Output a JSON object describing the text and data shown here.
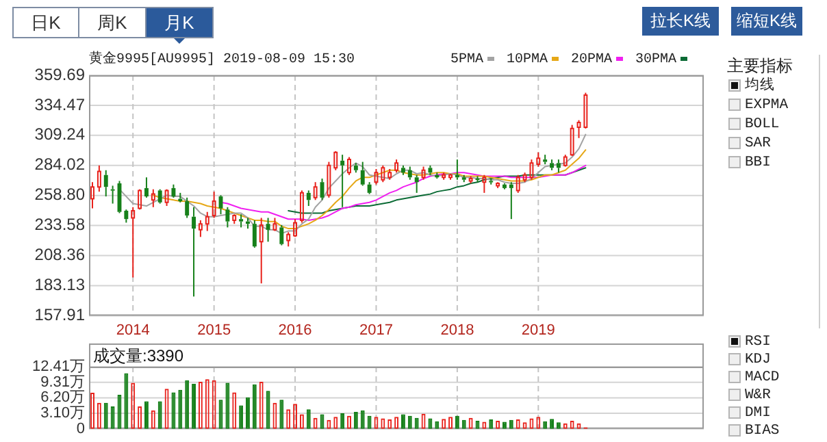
{
  "chart_data": [
    {
      "type": "candlestick",
      "title": "黄金9995[AU9995] 2019-08-09 15:30",
      "x": [
        "2013-07",
        "2013-08",
        "2013-09",
        "2013-10",
        "2013-11",
        "2013-12",
        "2014-01",
        "2014-02",
        "2014-03",
        "2014-04",
        "2014-05",
        "2014-06",
        "2014-07",
        "2014-08",
        "2014-09",
        "2014-10",
        "2014-11",
        "2014-12",
        "2015-01",
        "2015-02",
        "2015-03",
        "2015-04",
        "2015-05",
        "2015-06",
        "2015-07",
        "2015-08",
        "2015-09",
        "2015-10",
        "2015-11",
        "2015-12",
        "2016-01",
        "2016-02",
        "2016-03",
        "2016-04",
        "2016-05",
        "2016-06",
        "2016-07",
        "2016-08",
        "2016-09",
        "2016-10",
        "2016-11",
        "2016-12",
        "2017-01",
        "2017-02",
        "2017-03",
        "2017-04",
        "2017-05",
        "2017-06",
        "2017-07",
        "2017-08",
        "2017-09",
        "2017-10",
        "2017-11",
        "2017-12",
        "2018-01",
        "2018-02",
        "2018-03",
        "2018-04",
        "2018-05",
        "2018-06",
        "2018-07",
        "2018-08",
        "2018-09",
        "2018-10",
        "2018-11",
        "2018-12",
        "2019-01",
        "2019-02",
        "2019-03",
        "2019-04",
        "2019-05",
        "2019-06",
        "2019-07",
        "2019-08"
      ],
      "ohlc": [
        [
          256,
          270,
          248,
          266
        ],
        [
          266,
          284,
          262,
          279
        ],
        [
          276,
          280,
          258,
          266
        ],
        [
          264,
          267,
          252,
          263
        ],
        [
          269,
          271,
          244,
          245
        ],
        [
          246,
          247,
          236,
          239
        ],
        [
          240,
          249,
          190,
          246
        ],
        [
          248,
          264,
          247,
          263
        ],
        [
          265,
          274,
          257,
          258
        ],
        [
          255,
          264,
          249,
          260
        ],
        [
          263,
          264,
          252,
          253
        ],
        [
          253,
          264,
          250,
          263
        ],
        [
          265,
          268,
          257,
          258
        ],
        [
          256,
          261,
          253,
          254
        ],
        [
          254,
          257,
          240,
          242
        ],
        [
          241,
          249,
          174,
          231
        ],
        [
          230,
          238,
          224,
          235
        ],
        [
          235,
          245,
          229,
          241
        ],
        [
          242,
          262,
          240,
          254
        ],
        [
          258,
          259,
          243,
          248
        ],
        [
          247,
          249,
          232,
          237
        ],
        [
          238,
          243,
          235,
          242
        ],
        [
          239,
          243,
          232,
          237
        ],
        [
          237,
          240,
          231,
          235
        ],
        [
          235,
          238,
          215,
          216
        ],
        [
          220,
          240,
          185,
          234
        ],
        [
          235,
          240,
          220,
          230
        ],
        [
          230,
          240,
          229,
          235
        ],
        [
          232,
          234,
          217,
          218
        ],
        [
          221,
          228,
          216,
          226
        ],
        [
          225,
          239,
          224,
          236
        ],
        [
          238,
          263,
          236,
          261
        ],
        [
          261,
          263,
          250,
          255
        ],
        [
          257,
          270,
          255,
          266
        ],
        [
          270,
          273,
          255,
          257
        ],
        [
          259,
          287,
          257,
          284
        ],
        [
          282,
          296,
          280,
          295
        ],
        [
          288,
          293,
          249,
          284
        ],
        [
          278,
          291,
          276,
          289
        ],
        [
          284,
          286,
          278,
          280
        ],
        [
          280,
          287,
          267,
          268
        ],
        [
          268,
          270,
          260,
          261
        ],
        [
          270,
          281,
          268,
          278
        ],
        [
          272,
          284,
          270,
          282
        ],
        [
          274,
          281,
          272,
          278
        ],
        [
          280,
          289,
          278,
          286
        ],
        [
          282,
          284,
          276,
          278
        ],
        [
          280,
          283,
          272,
          274
        ],
        [
          274,
          276,
          261,
          270
        ],
        [
          274,
          283,
          272,
          280
        ],
        [
          282,
          284,
          276,
          278
        ],
        [
          276,
          278,
          273,
          274
        ],
        [
          274,
          278,
          272,
          276
        ],
        [
          274,
          277,
          272,
          276
        ],
        [
          276,
          289,
          272,
          274
        ],
        [
          274,
          276,
          270,
          272
        ],
        [
          271,
          275,
          269,
          273
        ],
        [
          273,
          275,
          270,
          272
        ],
        [
          270,
          276,
          261,
          274
        ],
        [
          271,
          273,
          268,
          270
        ],
        [
          267,
          270,
          265,
          269
        ],
        [
          268,
          269,
          264,
          265
        ],
        [
          268,
          270,
          239,
          265
        ],
        [
          263,
          276,
          261,
          274
        ],
        [
          272,
          278,
          270,
          276
        ],
        [
          274,
          289,
          272,
          286
        ],
        [
          285,
          295,
          283,
          290
        ],
        [
          289,
          293,
          285,
          287
        ],
        [
          286,
          289,
          280,
          282
        ],
        [
          286,
          289,
          278,
          282
        ],
        [
          284,
          293,
          283,
          291
        ],
        [
          293,
          318,
          292,
          315
        ],
        [
          316,
          322,
          307,
          320
        ],
        [
          316,
          345,
          315,
          343
        ]
      ],
      "colors": [
        "#e8221c",
        "#e8221c",
        "#16801a",
        "#16801a",
        "#16801a",
        "#16801a",
        "#e8221c",
        "#e8221c",
        "#16801a",
        "#e8221c",
        "#16801a",
        "#e8221c",
        "#16801a",
        "#16801a",
        "#16801a",
        "#16801a",
        "#e8221c",
        "#e8221c",
        "#e8221c",
        "#16801a",
        "#16801a",
        "#e8221c",
        "#16801a",
        "#16801a",
        "#16801a",
        "#e8221c",
        "#16801a",
        "#e8221c",
        "#16801a",
        "#e8221c",
        "#e8221c",
        "#e8221c",
        "#16801a",
        "#e8221c",
        "#16801a",
        "#e8221c",
        "#e8221c",
        "#16801a",
        "#e8221c",
        "#16801a",
        "#16801a",
        "#16801a",
        "#e8221c",
        "#e8221c",
        "#e8221c",
        "#e8221c",
        "#16801a",
        "#16801a",
        "#16801a",
        "#e8221c",
        "#16801a",
        "#16801a",
        "#e8221c",
        "#e8221c",
        "#16801a",
        "#16801a",
        "#e8221c",
        "#16801a",
        "#e8221c",
        "#16801a",
        "#e8221c",
        "#16801a",
        "#16801a",
        "#e8221c",
        "#e8221c",
        "#e8221c",
        "#e8221c",
        "#16801a",
        "#16801a",
        "#16801a",
        "#e8221c",
        "#e8221c",
        "#e8221c",
        "#e8221c"
      ],
      "series": [
        {
          "type": "line",
          "name": "5PMA",
          "color": "#a3a3a3",
          "values": [
            null,
            null,
            null,
            null,
            264,
            258,
            252,
            251,
            250,
            253,
            256,
            259,
            258,
            258,
            254,
            250,
            244,
            241,
            241,
            242,
            243,
            244,
            244,
            240,
            233,
            233,
            230,
            230,
            227,
            229,
            229,
            235,
            239,
            249,
            255,
            265,
            271,
            277,
            282,
            286,
            283,
            276,
            275,
            274,
            273,
            277,
            280,
            280,
            277,
            278,
            276,
            275,
            276,
            277,
            276,
            274,
            274,
            273,
            273,
            272,
            272,
            270,
            269,
            269,
            270,
            273,
            278,
            283,
            284,
            285,
            286,
            291,
            298,
            310
          ]
        },
        {
          "type": "line",
          "name": "10PMA",
          "color": "#e6a817",
          "values": [
            null,
            null,
            null,
            null,
            null,
            null,
            null,
            null,
            null,
            259,
            257,
            256,
            255,
            254,
            254,
            253,
            252,
            250,
            249,
            248,
            246,
            244,
            242,
            240,
            238,
            238,
            237,
            237,
            233,
            231,
            231,
            233,
            235,
            238,
            242,
            247,
            253,
            258,
            265,
            271,
            274,
            274,
            276,
            278,
            280,
            280,
            278,
            277,
            276,
            276,
            277,
            278,
            278,
            277,
            277,
            275,
            275,
            275,
            275,
            274,
            273,
            272,
            271,
            271,
            271,
            272,
            274,
            276,
            276,
            278,
            280,
            285,
            290,
            297
          ]
        },
        {
          "type": "line",
          "name": "20PMA",
          "color": "#f020f0",
          "values": [
            null,
            null,
            null,
            null,
            null,
            null,
            null,
            null,
            null,
            null,
            null,
            null,
            null,
            null,
            null,
            null,
            null,
            null,
            null,
            253,
            252,
            250,
            248,
            247,
            246,
            245,
            245,
            243,
            241,
            239,
            239,
            239,
            238,
            239,
            240,
            242,
            245,
            248,
            249,
            251,
            252,
            253,
            255,
            258,
            261,
            263,
            266,
            268,
            270,
            273,
            275,
            276,
            277,
            277,
            278,
            278,
            277,
            276,
            275,
            275,
            275,
            275,
            274,
            274,
            274,
            274,
            274,
            275,
            276,
            276,
            276,
            278,
            281,
            284
          ]
        },
        {
          "type": "line",
          "name": "30PMA",
          "color": "#0b6b35",
          "values": [
            null,
            null,
            null,
            null,
            null,
            null,
            null,
            null,
            null,
            null,
            null,
            null,
            null,
            null,
            null,
            null,
            null,
            null,
            null,
            null,
            null,
            null,
            null,
            null,
            null,
            null,
            null,
            null,
            null,
            246,
            245,
            244,
            244,
            244,
            244,
            246,
            247,
            248,
            249,
            250,
            250,
            250,
            251,
            252,
            253,
            255,
            256,
            257,
            258,
            259,
            260,
            262,
            263,
            264,
            266,
            267,
            269,
            270,
            272,
            273,
            274,
            275,
            275,
            275,
            276,
            276,
            276,
            276,
            276,
            276,
            276,
            278,
            280,
            282
          ]
        }
      ],
      "xlim": [
        "2013-06-16",
        "2021-01-16"
      ],
      "xticks": [
        {
          "value": "2014-01",
          "label": "2014"
        },
        {
          "value": "2015-01",
          "label": "2015"
        },
        {
          "value": "2016-01",
          "label": "2016"
        },
        {
          "value": "2017-01",
          "label": "2017"
        },
        {
          "value": "2018-01",
          "label": "2018"
        },
        {
          "value": "2019-01",
          "label": "2019"
        }
      ],
      "ylim": [
        157.91,
        359.69
      ],
      "yticks": [
        157.91,
        183.13,
        208.36,
        233.58,
        {
          "value": 258.8,
          "label": "258.80"
        },
        284.02,
        309.24,
        334.47,
        359.69
      ],
      "grid": true,
      "legend": "top right"
    },
    {
      "type": "bar",
      "title": "成交量:3390",
      "x": [
        "2013-07",
        "2013-08",
        "2013-09",
        "2013-10",
        "2013-11",
        "2013-12",
        "2014-01",
        "2014-02",
        "2014-03",
        "2014-04",
        "2014-05",
        "2014-06",
        "2014-07",
        "2014-08",
        "2014-09",
        "2014-10",
        "2014-11",
        "2014-12",
        "2015-01",
        "2015-02",
        "2015-03",
        "2015-04",
        "2015-05",
        "2015-06",
        "2015-07",
        "2015-08",
        "2015-09",
        "2015-10",
        "2015-11",
        "2015-12",
        "2016-01",
        "2016-02",
        "2016-03",
        "2016-04",
        "2016-05",
        "2016-06",
        "2016-07",
        "2016-08",
        "2016-09",
        "2016-10",
        "2016-11",
        "2016-12",
        "2017-01",
        "2017-02",
        "2017-03",
        "2017-04",
        "2017-05",
        "2017-06",
        "2017-07",
        "2017-08",
        "2017-09",
        "2017-10",
        "2017-11",
        "2017-12",
        "2018-01",
        "2018-02",
        "2018-03",
        "2018-04",
        "2018-05",
        "2018-06",
        "2018-07",
        "2018-08",
        "2018-09",
        "2018-10",
        "2018-11",
        "2018-12",
        "2019-01",
        "2019-02",
        "2019-03",
        "2019-04",
        "2019-05",
        "2019-06",
        "2019-07",
        "2019-08"
      ],
      "values": [
        7.2,
        5.2,
        5.2,
        4.5,
        6.8,
        11.1,
        9.2,
        4.5,
        5.5,
        3.7,
        5.5,
        8.0,
        7.3,
        7.8,
        9.7,
        9.0,
        9.4,
        9.9,
        9.7,
        5.8,
        9.2,
        7.3,
        4.7,
        6.3,
        8.9,
        9.4,
        7.6,
        5.2,
        5.8,
        3.9,
        5.0,
        2.9,
        3.9,
        2.2,
        2.9,
        1.8,
        2.4,
        3.1,
        2.6,
        3.4,
        3.7,
        2.6,
        2.4,
        2.1,
        1.9,
        2.4,
        2.9,
        2.6,
        2.2,
        3.0,
        2.1,
        1.5,
        2.0,
        2.4,
        2.6,
        1.8,
        2.2,
        1.6,
        1.4,
        1.9,
        1.6,
        1.4,
        1.8,
        1.9,
        1.3,
        2.1,
        2.4,
        1.5,
        2.0,
        1.3,
        1.1,
        1.6,
        1.1,
        0.3
      ],
      "colors": [
        "#e8221c",
        "#e8221c",
        "#16801a",
        "#16801a",
        "#16801a",
        "#16801a",
        "#e8221c",
        "#e8221c",
        "#16801a",
        "#e8221c",
        "#16801a",
        "#e8221c",
        "#16801a",
        "#16801a",
        "#16801a",
        "#16801a",
        "#e8221c",
        "#e8221c",
        "#e8221c",
        "#16801a",
        "#16801a",
        "#e8221c",
        "#16801a",
        "#16801a",
        "#16801a",
        "#e8221c",
        "#16801a",
        "#e8221c",
        "#16801a",
        "#e8221c",
        "#e8221c",
        "#e8221c",
        "#16801a",
        "#e8221c",
        "#16801a",
        "#e8221c",
        "#e8221c",
        "#16801a",
        "#e8221c",
        "#16801a",
        "#16801a",
        "#16801a",
        "#e8221c",
        "#e8221c",
        "#e8221c",
        "#e8221c",
        "#16801a",
        "#16801a",
        "#16801a",
        "#e8221c",
        "#16801a",
        "#16801a",
        "#e8221c",
        "#e8221c",
        "#16801a",
        "#16801a",
        "#e8221c",
        "#16801a",
        "#e8221c",
        "#16801a",
        "#e8221c",
        "#16801a",
        "#16801a",
        "#e8221c",
        "#e8221c",
        "#e8221c",
        "#e8221c",
        "#16801a",
        "#16801a",
        "#16801a",
        "#e8221c",
        "#e8221c",
        "#e8221c",
        "#e8221c"
      ],
      "xlim": [
        "2013-06-16",
        "2021-01-16"
      ],
      "xticks": [
        {
          "value": "2014-01",
          "label": null
        },
        {
          "value": "2015-01",
          "label": null
        },
        {
          "value": "2016-01",
          "label": null
        },
        {
          "value": "2017-01",
          "label": null
        },
        {
          "value": "2018-01",
          "label": null
        },
        {
          "value": "2019-01",
          "label": null
        }
      ],
      "ylim": [
        0,
        12.41
      ],
      "yticks": [
        0,
        {
          "value": 3.1,
          "label": "3.10万"
        },
        {
          "value": 6.2,
          "label": "6.20万"
        },
        {
          "value": 9.31,
          "label": "9.31万"
        },
        {
          "value": 12.41,
          "label": "12.41万"
        }
      ],
      "grid": true,
      "tick_labels": "y"
    },
    {
      "type": "other",
      "annotations": [
        "日K",
        "周K",
        "月K",
        "拉长K线",
        "缩短K线",
        "主要指标",
        "均线",
        "EXPMA",
        "BOLL",
        "SAR",
        "BBI",
        "RSI",
        "KDJ",
        "MACD",
        "W&R",
        "DMI",
        "BIAS"
      ]
    }
  ]
}
